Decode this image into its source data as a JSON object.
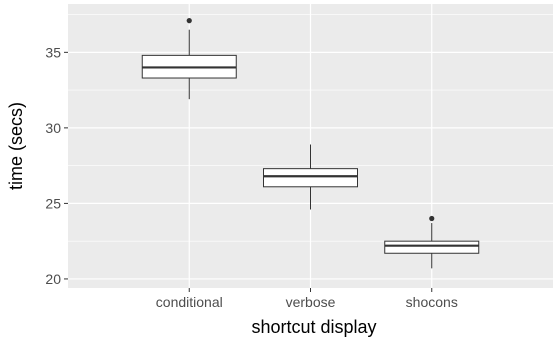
{
  "chart_data": {
    "type": "box",
    "xlabel": "shortcut display",
    "ylabel": "time (secs)",
    "ylim": [
      19.4,
      38.2
    ],
    "yticks": [
      20,
      25,
      30,
      35
    ],
    "grid": true,
    "categories": [
      "conditional",
      "verbose",
      "shocons"
    ],
    "boxes": [
      {
        "category": "conditional",
        "whisker_low": 31.9,
        "q1": 33.3,
        "median": 34.0,
        "q3": 34.8,
        "whisker_high": 36.5,
        "outliers": [
          37.1
        ]
      },
      {
        "category": "verbose",
        "whisker_low": 24.6,
        "q1": 26.1,
        "median": 26.8,
        "q3": 27.3,
        "whisker_high": 28.9,
        "outliers": []
      },
      {
        "category": "shocons",
        "whisker_low": 20.7,
        "q1": 21.7,
        "median": 22.2,
        "q3": 22.5,
        "whisker_high": 23.7,
        "outliers": [
          24.0
        ]
      }
    ],
    "colors": {
      "panel_background": "#ebebeb",
      "grid": "#ffffff",
      "box_fill": "#ffffff",
      "box_line": "#333333",
      "outlier": "#333333"
    }
  }
}
